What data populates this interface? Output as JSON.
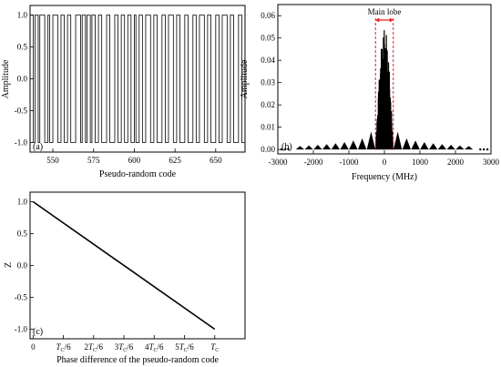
{
  "chart_data": [
    {
      "panel": "(a)",
      "type": "line",
      "xlabel": "Pseudo-random code",
      "ylabel": "Amplitude",
      "xlim": [
        536,
        668
      ],
      "ylim": [
        -1.15,
        1.15
      ],
      "x_ticks": [
        550,
        575,
        600,
        625,
        650
      ],
      "y_ticks": [
        1.0,
        0.5,
        0.0,
        -0.5,
        -1.0
      ],
      "y_tick_labels": [
        "1.0",
        "0.5",
        "0.0",
        "-0.5",
        "-1.0"
      ],
      "step_series": {
        "x": [
          536,
          538,
          539,
          541,
          542,
          545,
          547,
          548,
          550,
          553,
          555,
          557,
          559,
          561,
          564,
          567,
          568,
          570,
          571,
          573,
          574,
          576,
          578,
          580,
          583,
          585,
          588,
          590,
          592,
          594,
          596,
          598,
          600,
          601,
          603,
          605,
          607,
          610,
          612,
          614,
          617,
          619,
          621,
          624,
          626,
          628,
          631,
          633,
          636,
          638,
          640,
          643,
          645,
          647,
          650,
          652,
          654,
          657,
          659,
          661,
          664,
          666,
          668
        ],
        "y": [
          1,
          -1,
          1,
          -1,
          1,
          -1,
          1,
          -1,
          1,
          -1,
          1,
          -1,
          1,
          -1,
          1,
          -1,
          1,
          -1,
          1,
          -1,
          1,
          -1,
          1,
          -1,
          1,
          -1,
          1,
          -1,
          1,
          -1,
          1,
          -1,
          1,
          -1,
          1,
          -1,
          1,
          -1,
          1,
          -1,
          1,
          -1,
          1,
          -1,
          1,
          -1,
          1,
          -1,
          1,
          -1,
          1,
          -1,
          1,
          -1,
          1,
          -1,
          1,
          -1,
          1,
          -1,
          1,
          -1,
          1
        ]
      }
    },
    {
      "panel": "(b)",
      "type": "line",
      "xlabel": "Frequency (MHz)",
      "ylabel": "Amplitude",
      "xlim": [
        -3000,
        3000
      ],
      "ylim": [
        -0.002,
        0.065
      ],
      "x_ticks": [
        -3000,
        -2000,
        -1000,
        0,
        1000,
        2000,
        3000
      ],
      "y_ticks": [
        0.0,
        0.01,
        0.02,
        0.03,
        0.04,
        0.05,
        0.06
      ],
      "y_tick_labels": [
        "0.00",
        "0.01",
        "0.02",
        "0.03",
        "0.04",
        "0.05",
        "0.06"
      ],
      "annotation": "Main lobe",
      "main_lobe_range": [
        -250,
        250
      ],
      "main_lobe_peak": 0.056,
      "sidelobe_centers": [
        -2375,
        -2125,
        -1875,
        -1625,
        -1375,
        -1125,
        -875,
        -625,
        -375,
        375,
        625,
        875,
        1125,
        1375,
        1625,
        1875,
        2125,
        2375
      ],
      "sidelobe_heights": [
        0.0015,
        0.0018,
        0.0021,
        0.0024,
        0.0028,
        0.0033,
        0.004,
        0.005,
        0.008,
        0.008,
        0.005,
        0.004,
        0.0033,
        0.0028,
        0.0024,
        0.0021,
        0.0018,
        0.0015
      ],
      "dotted_x": [
        -2900,
        -2800,
        -2700,
        2700,
        2800,
        2900
      ]
    },
    {
      "panel": "(c)",
      "type": "line",
      "xlabel": "Phase difference of the pseudo-random code",
      "ylabel": "Z",
      "xlim": [
        -0.1,
        7.0
      ],
      "ylim": [
        -1.15,
        1.15
      ],
      "x": [
        0,
        6
      ],
      "y": [
        1.0,
        -1.0
      ],
      "y_ticks": [
        1.0,
        0.5,
        0.0,
        -0.5,
        -1.0
      ],
      "y_tick_labels": [
        "1.0",
        "0.5",
        "0.0",
        "-0.5",
        "-1.0"
      ],
      "x_ticks": [
        0,
        1,
        2,
        3,
        4,
        5,
        6
      ],
      "x_tick_labels": [
        {
          "pre": "0",
          "base": "",
          "sub": "",
          "post": ""
        },
        {
          "pre": "",
          "base": "T",
          "sub": "C",
          "post": "/6"
        },
        {
          "pre": "2",
          "base": "T",
          "sub": "C",
          "post": "/6"
        },
        {
          "pre": "3",
          "base": "T",
          "sub": "C",
          "post": "/6"
        },
        {
          "pre": "4",
          "base": "T",
          "sub": "C",
          "post": "/6"
        },
        {
          "pre": "5",
          "base": "T",
          "sub": "C",
          "post": "/6"
        },
        {
          "pre": "",
          "base": "T",
          "sub": "C",
          "post": ""
        }
      ]
    }
  ]
}
